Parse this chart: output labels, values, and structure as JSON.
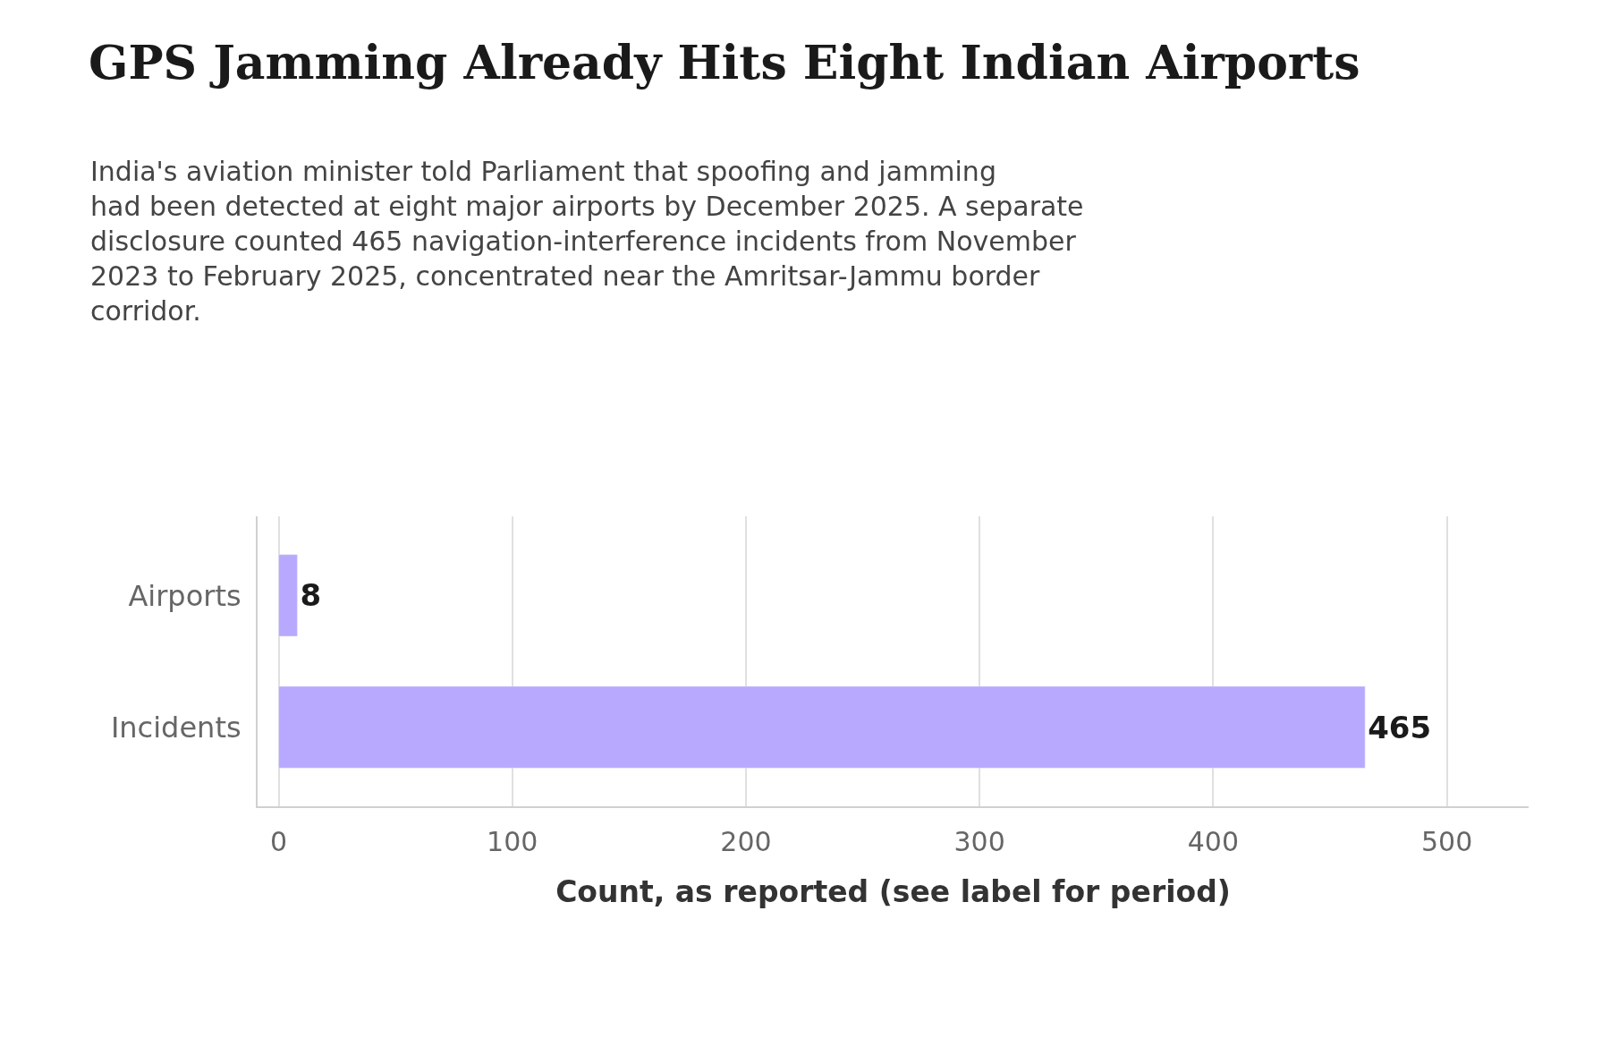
{
  "chart_data": {
    "type": "bar",
    "orientation": "horizontal",
    "title": "GPS Jamming Already Hits Eight Indian Airports",
    "subtitle": "India's aviation minister told Parliament that spoofing and jamming had been detected at eight major airports by December 2025. A separate disclosure counted 465 navigation-interference incidents from November 2023 to February 2025, concentrated near the Amritsar-Jammu border corridor.",
    "xlabel": "Count, as reported (see label for period)",
    "categories": [
      "Airports",
      "Incidents"
    ],
    "values": [
      8,
      465
    ],
    "color": "#b8a9ff",
    "data_labels": true,
    "xlim": [
      -9,
      535
    ],
    "xticks": [
      0,
      100,
      200,
      300,
      400,
      500
    ],
    "grid": "x"
  }
}
